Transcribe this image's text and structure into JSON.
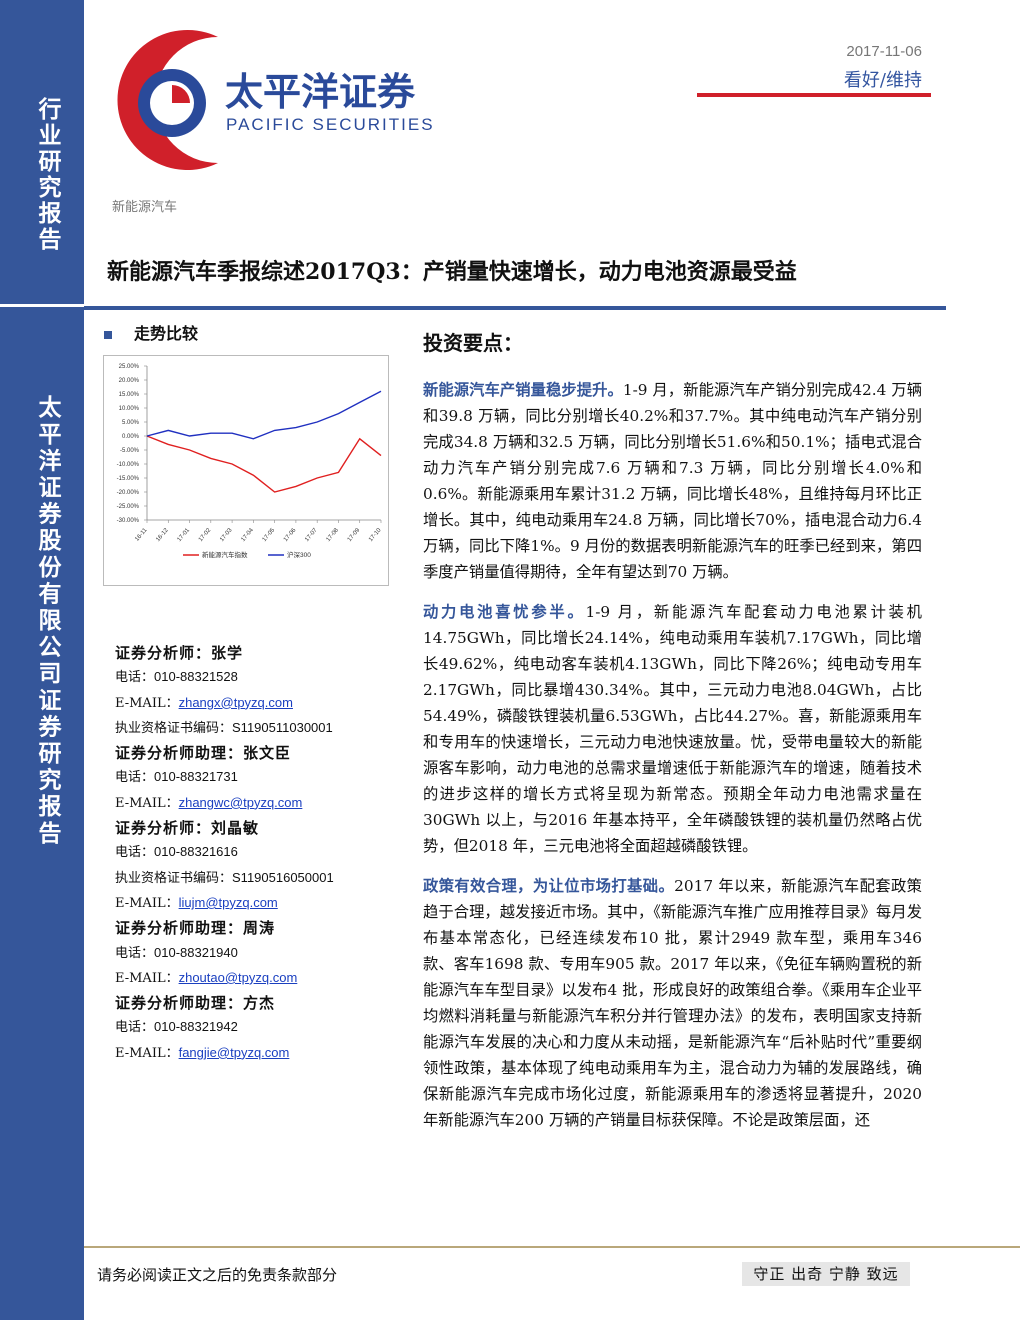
{
  "header": {
    "sidebar_top": "行业研究报告",
    "sidebar_bottom": "太平洋证券股份有限公司证券研究报告",
    "logo_cn": "太平洋证券",
    "logo_en": "PACIFIC SECURITIES",
    "date": "2017-11-06",
    "rating": "看好/维持",
    "sector": "新能源汽车"
  },
  "title": "新能源汽车季报综述2017Q3：产销量快速增长，动力电池资源最受益",
  "trend_heading": "走势比较",
  "chart_data": {
    "type": "line",
    "categories": [
      "16-11",
      "16-12",
      "17-01",
      "17-02",
      "17-03",
      "17-04",
      "17-05",
      "17-06",
      "17-07",
      "17-08",
      "17-09",
      "17-10"
    ],
    "series": [
      {
        "name": "新能源汽车指数",
        "color": "#e02020",
        "values": [
          0,
          -3,
          -5,
          -8,
          -10,
          -14,
          -20,
          -18,
          -15,
          -13,
          -1,
          -7
        ]
      },
      {
        "name": "沪深300",
        "color": "#2030c0",
        "values": [
          0,
          2,
          0,
          1,
          1,
          -1,
          2,
          3,
          5,
          8,
          12,
          16
        ]
      }
    ],
    "ylim": [
      -30,
      25
    ],
    "yticks": [
      {
        "value": 25,
        "label": "25.00%"
      },
      {
        "value": 20,
        "label": "20.00%"
      },
      {
        "value": 15,
        "label": "15.00%"
      },
      {
        "value": 10,
        "label": "10.00%"
      },
      {
        "value": 5,
        "label": "5.00%"
      },
      {
        "value": 0,
        "label": "0.00%"
      },
      {
        "value": -5,
        "label": "-5.00%"
      },
      {
        "value": -10,
        "label": "-10.00%"
      },
      {
        "value": -15,
        "label": "-15.00%"
      },
      {
        "value": -20,
        "label": "-20.00%"
      },
      {
        "value": -25,
        "label": "-25.00%"
      },
      {
        "value": -30,
        "label": "-30.00%"
      }
    ],
    "grid": false,
    "legend": "bottom"
  },
  "analysts": [
    {
      "title": "证券分析师：张学",
      "lines": [
        {
          "label": "电话：",
          "value": "010-88321528"
        },
        {
          "label": "E-MAIL：",
          "value": "zhangx@tpyzq.com",
          "link": true
        },
        {
          "label": "执业资格证书编码：",
          "value": "S1190511030001"
        }
      ]
    },
    {
      "title": "证券分析师助理：张文臣",
      "lines": [
        {
          "label": "电话：",
          "value": "010-88321731"
        },
        {
          "label": "E-MAIL：",
          "value": "zhangwc@tpyzq.com",
          "link": true
        }
      ]
    },
    {
      "title": "证券分析师：刘晶敏",
      "lines": [
        {
          "label": "电话：",
          "value": "010-88321616"
        },
        {
          "label": "执业资格证书编码：",
          "value": "S1190516050001"
        },
        {
          "label": "E-MAIL：",
          "value": "liujm@tpyzq.com",
          "link": true
        }
      ]
    },
    {
      "title": "证券分析师助理：周涛",
      "lines": [
        {
          "label": "电话：",
          "value": "010-88321940"
        },
        {
          "label": "E-MAIL：",
          "value": "zhoutao@tpyzq.com",
          "link": true
        }
      ]
    },
    {
      "title": "证券分析师助理：方杰",
      "lines": [
        {
          "label": "电话：",
          "value": "010-88321942"
        },
        {
          "label": "E-MAIL：",
          "value": "fangjie@tpyzq.com",
          "link": true
        }
      ]
    }
  ],
  "points_heading": "投资要点：",
  "paragraphs": [
    {
      "heading": "新能源汽车产销量稳步提升。",
      "body": "1-9 月，新能源汽车产销分别完成42.4 万辆和39.8 万辆，同比分别增长40.2%和37.7%。其中纯电动汽车产销分别完成34.8 万辆和32.5 万辆，同比分别增长51.6%和50.1%；插电式混合动力汽车产销分别完成7.6 万辆和7.3 万辆，同比分别增长4.0%和0.6%。新能源乘用车累计31.2 万辆，同比增长48%，且维持每月环比正增长。其中，纯电动乘用车24.8 万辆，同比增长70%，插电混合动力6.4 万辆，同比下降1%。9 月份的数据表明新能源汽车的旺季已经到来，第四季度产销量值得期待，全年有望达到70 万辆。"
    },
    {
      "heading": "动力电池喜忧参半。",
      "body": "1-9 月，新能源汽车配套动力电池累计装机14.75GWh，同比增长24.14%，纯电动乘用车装机7.17GWh，同比增长49.62%，纯电动客车装机4.13GWh，同比下降26%；纯电动专用车2.17GWh，同比暴增430.34%。其中，三元动力电池8.04GWh，占比54.49%，磷酸铁锂装机量6.53GWh，占比44.27%。喜，新能源乘用车和专用车的快速增长，三元动力电池快速放量。忧，受带电量较大的新能源客车影响，动力电池的总需求量增速低于新能源汽车的增速，随着技术的进步这样的增长方式将呈现为新常态。预期全年动力电池需求量在30GWh 以上，与2016 年基本持平，全年磷酸铁锂的装机量仍然略占优势，但2018 年，三元电池将全面超越磷酸铁锂。"
    },
    {
      "heading": "政策有效合理，为让位市场打基础。",
      "body": "2017 年以来，新能源汽车配套政策趋于合理，越发接近市场。其中，《新能源汽车推广应用推荐目录》每月发布基本常态化，已经连续发布10 批，累计2949 款车型，乘用车346 款、客车1698 款、专用车905 款。2017 年以来，《免征车辆购置税的新能源汽车车型目录》以发布4 批，形成良好的政策组合拳。《乘用车企业平均燃料消耗量与新能源汽车积分并行管理办法》的发布，表明国家支持新能源汽车发展的决心和力度从未动摇，是新能源汽车“后补贴时代”重要纲领性政策，基本体现了纯电动乘用车为主，混合动力为辅的发展路线，确保新能源汽车完成市场化过度，新能源乘用车的渗透将显著提升，2020 年新能源汽车200 万辆的产销量目标获保障。不论是政策层面，还"
    }
  ],
  "footer": {
    "disclaimer": "请务必阅读正文之后的免责条款部分",
    "motto": "守正 出奇 宁静 致远"
  }
}
